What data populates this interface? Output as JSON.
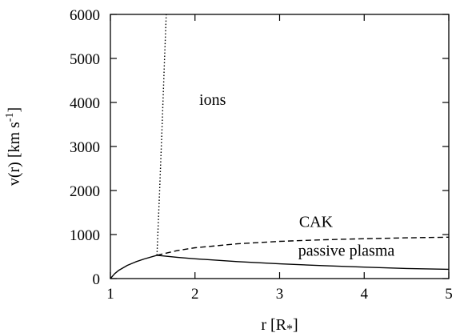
{
  "chart_data": {
    "type": "line",
    "xlabel": "r [R",
    "xlabel_sub": "*",
    "xlabel_end": "]",
    "ylabel": "v(r) [km s",
    "ylabel_sup": "-1",
    "ylabel_end": "]",
    "xlim": [
      1,
      5
    ],
    "ylim": [
      0,
      6000
    ],
    "xticks": [
      1,
      2,
      3,
      4,
      5
    ],
    "yticks": [
      0,
      1000,
      2000,
      3000,
      4000,
      5000,
      6000
    ],
    "grid": false,
    "series": [
      {
        "name": "passive plasma",
        "style": "solid",
        "color": "#000000",
        "x": [
          1.0,
          1.05,
          1.1,
          1.2,
          1.3,
          1.4,
          1.55,
          1.8,
          2.0,
          2.5,
          3.0,
          3.5,
          4.0,
          4.5,
          5.0
        ],
        "y": [
          0,
          110,
          190,
          300,
          380,
          445,
          530,
          480,
          450,
          385,
          335,
          295,
          260,
          230,
          210
        ]
      },
      {
        "name": "CAK",
        "style": "dashed",
        "color": "#000000",
        "x": [
          1.55,
          1.8,
          2.0,
          2.5,
          3.0,
          3.5,
          4.0,
          4.5,
          5.0
        ],
        "y": [
          530,
          640,
          700,
          790,
          845,
          880,
          905,
          925,
          940
        ]
      },
      {
        "name": "ions",
        "style": "dotted",
        "color": "#000000",
        "x": [
          1.55,
          1.58,
          1.61,
          1.64,
          1.66
        ],
        "y": [
          530,
          1900,
          3400,
          5000,
          6000
        ]
      }
    ],
    "annotations": [
      {
        "text": "ions",
        "x": 2.05,
        "y": 3950
      },
      {
        "text": "CAK",
        "x": 3.23,
        "y": 1170
      },
      {
        "text": "passive plasma",
        "x": 3.22,
        "y": 520
      }
    ]
  }
}
